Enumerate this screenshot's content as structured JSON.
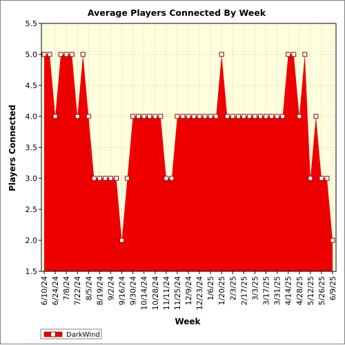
{
  "chart_data": {
    "type": "area",
    "title": "Average Players Connected By Week",
    "xlabel": "Week",
    "ylabel": "Players Connected",
    "ylim": [
      1.5,
      5.5
    ],
    "yticks": [
      "1.5",
      "2.0",
      "2.5",
      "3.0",
      "3.5",
      "4.0",
      "4.5",
      "5.0",
      "5.5"
    ],
    "xtick_labels": [
      "6/10/24",
      "6/24/24",
      "7/8/24",
      "7/22/24",
      "8/5/24",
      "8/19/24",
      "9/2/24",
      "9/16/24",
      "9/30/24",
      "10/14/24",
      "10/28/24",
      "11/11/24",
      "11/25/24",
      "12/9/24",
      "12/23/24",
      "1/6/25",
      "1/20/25",
      "2/3/25",
      "2/17/25",
      "3/3/25",
      "3/17/25",
      "3/31/25",
      "4/14/25",
      "4/28/25",
      "5/12/25",
      "5/26/25",
      "6/9/25"
    ],
    "grid": true,
    "legend": "bottom-left",
    "colors": {
      "fill": "#ee0000",
      "plot_background": "#ffffdd",
      "marker_fill": "#ffffff",
      "marker_stroke": "#880000"
    },
    "series": [
      {
        "name": "DarkWind",
        "values": [
          5.0,
          5.0,
          4.0,
          5.0,
          5.0,
          5.0,
          4.0,
          5.0,
          4.0,
          3.0,
          3.0,
          3.0,
          3.0,
          3.0,
          2.0,
          3.0,
          4.0,
          4.0,
          4.0,
          4.0,
          4.0,
          4.0,
          3.0,
          3.0,
          4.0,
          4.0,
          4.0,
          4.0,
          4.0,
          4.0,
          4.0,
          4.0,
          5.0,
          4.0,
          4.0,
          4.0,
          4.0,
          4.0,
          4.0,
          4.0,
          4.0,
          4.0,
          4.0,
          4.0,
          5.0,
          5.0,
          4.0,
          5.0,
          3.0,
          4.0,
          3.0,
          3.0,
          2.0
        ]
      }
    ]
  }
}
